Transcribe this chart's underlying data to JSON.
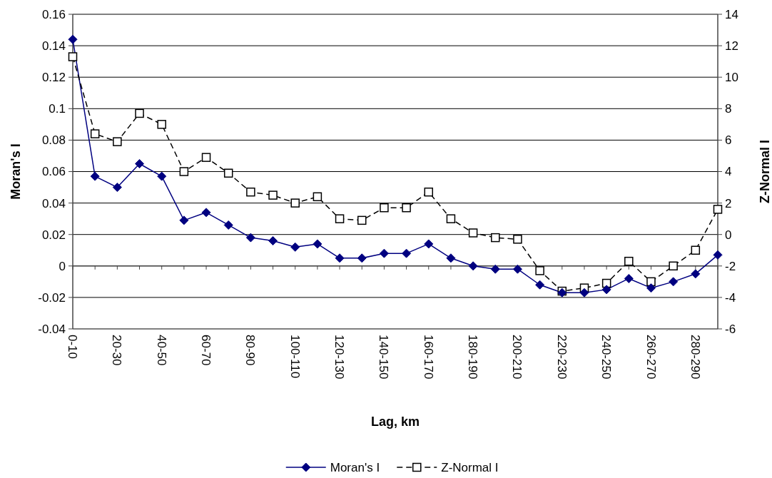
{
  "chart_data": {
    "type": "line",
    "xlabel": "Lag, km",
    "ylabel": "Moran's I",
    "y2label": "Z-Normal I",
    "categories": [
      "0-10",
      null,
      "20-30",
      null,
      "40-50",
      null,
      "60-70",
      null,
      "80-90",
      null,
      "100-110",
      null,
      "120-130",
      null,
      "140-150",
      null,
      "160-170",
      null,
      "180-190",
      null,
      "200-210",
      null,
      "220-230",
      null,
      "240-250",
      null,
      "260-270",
      null,
      "280-290",
      null
    ],
    "series": [
      {
        "name": "Moran's I",
        "color": "#000080",
        "marker": "diamond",
        "line_style": "solid",
        "values": [
          0.144,
          0.057,
          0.05,
          0.065,
          0.057,
          0.029,
          0.034,
          0.026,
          0.018,
          0.016,
          0.012,
          0.014,
          0.005,
          0.005,
          0.008,
          0.008,
          0.014,
          0.005,
          0.0,
          -0.002,
          -0.002,
          -0.012,
          -0.017,
          -0.017,
          -0.015,
          -0.008,
          -0.014,
          -0.01,
          -0.005,
          0.007
        ]
      },
      {
        "name": "Z-Normal I",
        "color": "#000000",
        "marker": "square",
        "line_style": "dashed",
        "axis": "y2",
        "values": [
          11.3,
          6.4,
          5.9,
          7.7,
          7.0,
          4.0,
          4.9,
          3.9,
          2.7,
          2.5,
          2.0,
          2.4,
          1.0,
          0.9,
          1.7,
          1.7,
          2.7,
          1.0,
          0.1,
          -0.2,
          -0.3,
          -2.3,
          -3.6,
          -3.4,
          -3.1,
          -1.7,
          -3.0,
          -2.0,
          -1.0,
          1.6
        ]
      }
    ],
    "ylim": [
      -0.04,
      0.16
    ],
    "yticks": [
      -0.04,
      -0.02,
      0,
      0.02,
      0.04,
      0.06,
      0.08,
      0.1,
      0.12,
      0.14,
      0.16
    ],
    "y2lim": [
      -6,
      14
    ],
    "y2ticks": [
      -6,
      -4,
      -2,
      0,
      2,
      4,
      6,
      8,
      10,
      12,
      14
    ],
    "grid": "y",
    "legend": "bottom"
  }
}
